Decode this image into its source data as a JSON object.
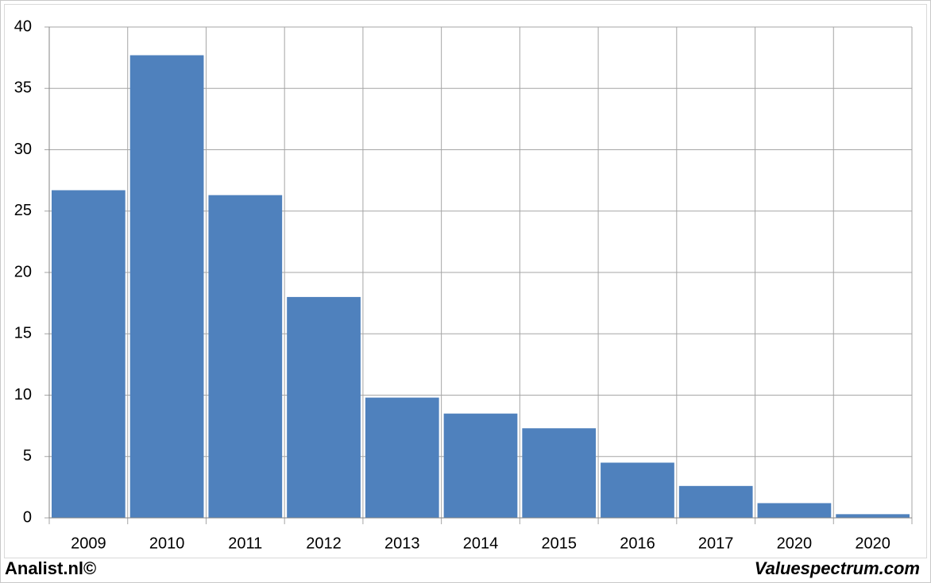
{
  "chart_data": {
    "type": "bar",
    "categories": [
      "2009",
      "2010",
      "2011",
      "2012",
      "2013",
      "2014",
      "2015",
      "2016",
      "2017",
      "2020",
      "2020"
    ],
    "values": [
      26.7,
      37.7,
      26.3,
      18.0,
      9.8,
      8.5,
      7.3,
      4.5,
      2.6,
      1.2,
      0.3
    ],
    "color": "#4f81bd",
    "ylim": [
      0,
      40
    ],
    "yticks": [
      0,
      5,
      10,
      15,
      20,
      25,
      30,
      35,
      40
    ],
    "grid": true,
    "footer_left": "Analist.nl©",
    "footer_right": "Valuespectrum.com"
  }
}
